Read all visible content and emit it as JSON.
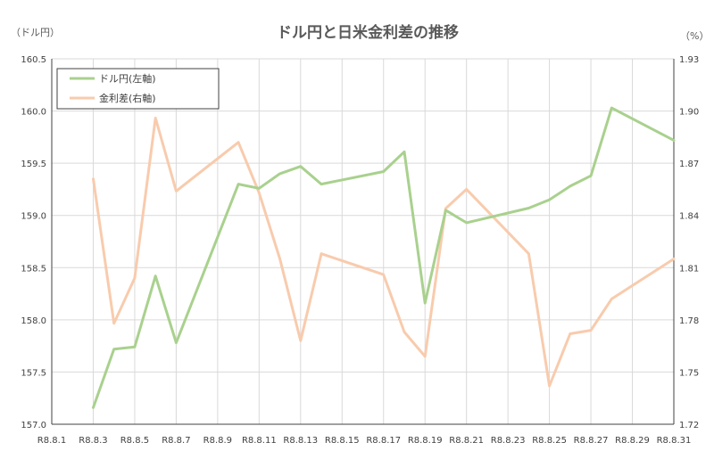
{
  "chart_data": {
    "type": "line",
    "title": "ドル円と日米金利差の推移",
    "left_unit": "（ドル円）",
    "right_unit": "（%）",
    "ylim_left": [
      157.0,
      160.5
    ],
    "yticks_left": [
      "157.0",
      "157.5",
      "158.0",
      "158.5",
      "159.0",
      "159.5",
      "160.0",
      "160.5"
    ],
    "ylim_right": [
      1.72,
      1.93
    ],
    "yticks_right": [
      "1.72",
      "1.75",
      "1.78",
      "1.81",
      "1.84",
      "1.87",
      "1.90",
      "1.93"
    ],
    "x_dates": [
      1,
      31
    ],
    "x_ticks": [
      {
        "day": 1,
        "label": "R8.8.1"
      },
      {
        "day": 3,
        "label": "R8.8.3"
      },
      {
        "day": 5,
        "label": "R8.8.5"
      },
      {
        "day": 7,
        "label": "R8.8.7"
      },
      {
        "day": 9,
        "label": "R8.8.9"
      },
      {
        "day": 11,
        "label": "R8.8.11"
      },
      {
        "day": 13,
        "label": "R8.8.13"
      },
      {
        "day": 15,
        "label": "R8.8.15"
      },
      {
        "day": 17,
        "label": "R8.8.17"
      },
      {
        "day": 19,
        "label": "R8.8.19"
      },
      {
        "day": 21,
        "label": "R8.8.21"
      },
      {
        "day": 23,
        "label": "R8.8.23"
      },
      {
        "day": 25,
        "label": "R8.8.25"
      },
      {
        "day": 27,
        "label": "R8.8.27"
      },
      {
        "day": 29,
        "label": "R8.8.29"
      },
      {
        "day": 31,
        "label": "R8.8.31"
      }
    ],
    "legend_position": "top-left",
    "series": [
      {
        "name": "ドル円(左軸)",
        "axis": "left",
        "color": "#a9d18e",
        "points": [
          [
            3,
            157.16
          ],
          [
            4,
            157.72
          ],
          [
            5,
            157.74
          ],
          [
            6,
            158.42
          ],
          [
            7,
            157.78
          ],
          [
            10,
            159.3
          ],
          [
            11,
            159.26
          ],
          [
            12,
            159.4
          ],
          [
            13,
            159.47
          ],
          [
            14,
            159.3
          ],
          [
            17,
            159.42
          ],
          [
            18,
            159.61
          ],
          [
            19,
            158.16
          ],
          [
            20,
            159.05
          ],
          [
            21,
            158.93
          ],
          [
            24,
            159.07
          ],
          [
            25,
            159.15
          ],
          [
            26,
            159.28
          ],
          [
            27,
            159.38
          ],
          [
            28,
            160.03
          ],
          [
            31,
            159.72
          ]
        ]
      },
      {
        "name": "金利差(右軸)",
        "axis": "right",
        "color": "#f8cbad",
        "points": [
          [
            3,
            1.861
          ],
          [
            4,
            1.778
          ],
          [
            5,
            1.804
          ],
          [
            6,
            1.896
          ],
          [
            7,
            1.854
          ],
          [
            10,
            1.882
          ],
          [
            11,
            1.853
          ],
          [
            12,
            1.815
          ],
          [
            13,
            1.768
          ],
          [
            14,
            1.818
          ],
          [
            17,
            1.806
          ],
          [
            18,
            1.773
          ],
          [
            19,
            1.759
          ],
          [
            20,
            1.844
          ],
          [
            21,
            1.855
          ],
          [
            24,
            1.818
          ],
          [
            25,
            1.742
          ],
          [
            26,
            1.772
          ],
          [
            27,
            1.774
          ],
          [
            28,
            1.792
          ],
          [
            31,
            1.815
          ]
        ]
      }
    ]
  }
}
